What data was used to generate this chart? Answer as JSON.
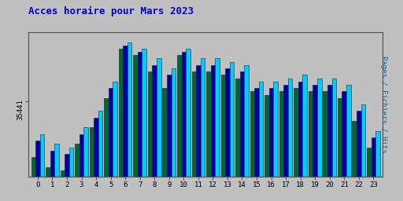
{
  "title": "Acces horaire pour Mars 2023",
  "title_color": "#0000cc",
  "title_fontsize": 9,
  "ylabel_right": "Pages / Fichiers / Hits",
  "ylabel_right_color": "#0066aa",
  "hours": [
    0,
    1,
    2,
    3,
    4,
    5,
    6,
    7,
    8,
    9,
    10,
    11,
    12,
    13,
    14,
    15,
    16,
    17,
    18,
    19,
    20,
    21,
    22,
    23
  ],
  "ytick_label": "35441",
  "pages": [
    30500,
    29000,
    28500,
    31500,
    34000,
    38500,
    44500,
    43500,
    42000,
    40500,
    43500,
    42000,
    42000,
    41500,
    41000,
    38500,
    38500,
    39000,
    39500,
    39000,
    39000,
    38000,
    35000,
    31000
  ],
  "fichiers": [
    27000,
    25500,
    25000,
    29000,
    31500,
    36000,
    43500,
    42500,
    40000,
    37500,
    42500,
    40000,
    40000,
    39500,
    39000,
    37000,
    36500,
    37000,
    37500,
    37000,
    37000,
    36000,
    32500,
    28500
  ],
  "hits": [
    29500,
    28000,
    27500,
    30500,
    33000,
    37500,
    44000,
    43000,
    41000,
    39500,
    43000,
    41000,
    41000,
    40500,
    40000,
    37500,
    37500,
    38000,
    38500,
    38000,
    38000,
    37000,
    34000,
    30000
  ],
  "bar_color_pages": "#00ccff",
  "bar_color_fichiers": "#006633",
  "bar_color_hits": "#0000aa",
  "background_color": "#c0c0c0",
  "plot_bg_color": "#c0c0c0",
  "bar_width": 0.3,
  "ylim_min": 24000,
  "ylim_max": 46000
}
